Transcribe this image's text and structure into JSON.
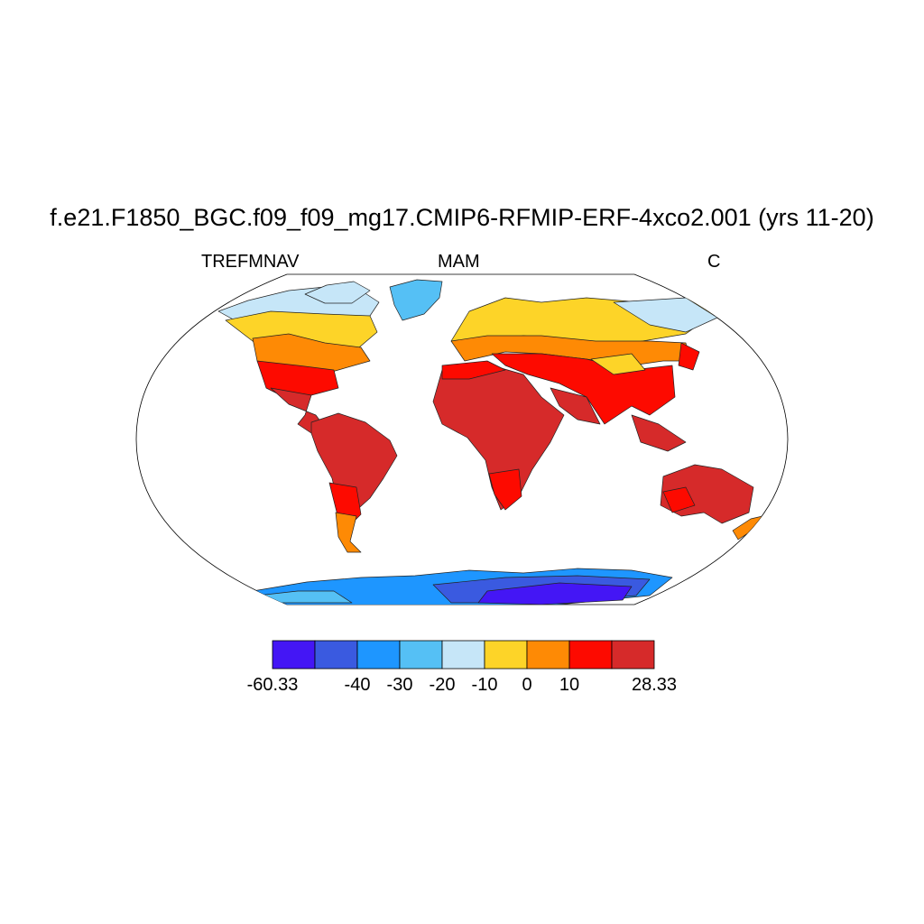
{
  "title": "f.e21.F1850_BGC.f09_f09_mg17.CMIP6-RFMIP-ERF-4xco2.001 (yrs 11-20)",
  "left_label": "TREFMNAV",
  "center_label": "MAM",
  "right_label": "C",
  "colorbar": {
    "levels": [
      -60.33,
      -50,
      -40,
      -30,
      -20,
      -10,
      0,
      10,
      20,
      28.33
    ],
    "labels": [
      "-60.33",
      "-40",
      "-30",
      "-20",
      "-10",
      "0",
      "10",
      "28.33"
    ],
    "label_levels": [
      -60.33,
      -40,
      -30,
      -20,
      -10,
      0,
      10,
      28.33
    ],
    "colors": [
      "#4416f5",
      "#3a5ae0",
      "#1e96ff",
      "#55c0f5",
      "#c6e6f8",
      "#fdd428",
      "#fe8a05",
      "#fd0a00",
      "#d62a2a"
    ]
  }
}
